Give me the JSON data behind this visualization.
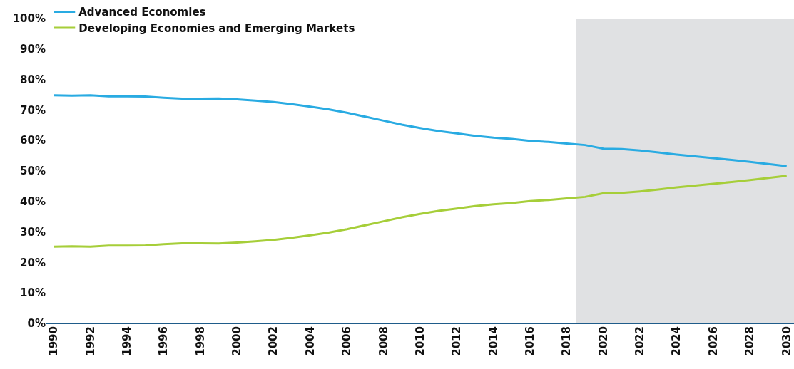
{
  "chart_data": {
    "type": "line",
    "x": [
      1990,
      1991,
      1992,
      1993,
      1994,
      1995,
      1996,
      1997,
      1998,
      1999,
      2000,
      2001,
      2002,
      2003,
      2004,
      2005,
      2006,
      2007,
      2008,
      2009,
      2010,
      2011,
      2012,
      2013,
      2014,
      2015,
      2016,
      2017,
      2018,
      2019,
      2020,
      2021,
      2022,
      2023,
      2024,
      2025,
      2026,
      2027,
      2028,
      2029,
      2030
    ],
    "series": [
      {
        "name": "Advanced Economies",
        "color": "#29abe2",
        "values": [
          74.8,
          74.7,
          74.8,
          74.5,
          74.5,
          74.4,
          74.0,
          73.7,
          73.7,
          73.8,
          73.5,
          73.1,
          72.6,
          71.9,
          71.1,
          70.2,
          69.1,
          67.8,
          66.5,
          65.2,
          64.1,
          63.1,
          62.3,
          61.5,
          60.9,
          60.5,
          59.9,
          59.5,
          59.0,
          58.5,
          57.3,
          57.2,
          56.7,
          56.1,
          55.4,
          54.8,
          54.2,
          53.6,
          53.0,
          52.3,
          51.6
        ]
      },
      {
        "name": "Developing Economies and Emerging Markets",
        "color": "#a6ce39",
        "values": [
          25.2,
          25.3,
          25.2,
          25.5,
          25.5,
          25.6,
          26.0,
          26.3,
          26.3,
          26.2,
          26.5,
          26.9,
          27.4,
          28.1,
          28.9,
          29.8,
          30.9,
          32.2,
          33.5,
          34.8,
          35.9,
          36.9,
          37.7,
          38.5,
          39.1,
          39.5,
          40.1,
          40.5,
          41.0,
          41.5,
          42.7,
          42.8,
          43.3,
          43.9,
          44.6,
          45.2,
          45.8,
          46.4,
          47.0,
          47.7,
          48.4
        ]
      }
    ],
    "xlim": [
      1989.6,
      2030.4
    ],
    "xticks": [
      1990,
      1992,
      1994,
      1996,
      1998,
      2000,
      2002,
      2004,
      2006,
      2008,
      2010,
      2012,
      2014,
      2016,
      2018,
      2020,
      2022,
      2024,
      2026,
      2028,
      2030
    ],
    "ylim": [
      0,
      100
    ],
    "yticks": [
      {
        "value": 0,
        "label": "0%"
      },
      {
        "value": 10,
        "label": "10%"
      },
      {
        "value": 20,
        "label": "20%"
      },
      {
        "value": 30,
        "label": "30%"
      },
      {
        "value": 40,
        "label": "40%"
      },
      {
        "value": 50,
        "label": "50%"
      },
      {
        "value": 60,
        "label": "60%"
      },
      {
        "value": 70,
        "label": "70%"
      },
      {
        "value": 80,
        "label": "80%"
      },
      {
        "value": 90,
        "label": "90%"
      },
      {
        "value": 100,
        "label": "100%"
      }
    ],
    "bands": [
      {
        "axis": "x",
        "from": 2018.5,
        "to": 2030.4,
        "color": "#e0e1e3"
      }
    ],
    "grid": false,
    "legend": "top left",
    "marker": "none",
    "line_style": "solid"
  }
}
